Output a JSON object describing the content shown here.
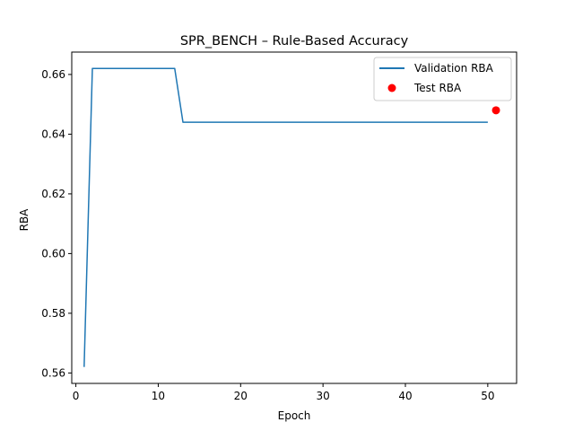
{
  "chart_data": {
    "type": "line",
    "title": "SPR_BENCH – Rule-Based Accuracy",
    "xlabel": "Epoch",
    "ylabel": "RBA",
    "xlim": [
      -0.5,
      53.5
    ],
    "ylim": [
      0.5565,
      0.6675
    ],
    "xticks": [
      0,
      10,
      20,
      30,
      40,
      50
    ],
    "yticks": [
      0.56,
      0.58,
      0.6,
      0.62,
      0.64,
      0.66
    ],
    "ytick_labels": [
      "0.56",
      "0.58",
      "0.60",
      "0.62",
      "0.64",
      "0.66"
    ],
    "grid": false,
    "legend_position": "top-right",
    "series": [
      {
        "name": "Validation RBA",
        "type": "line",
        "color": "#1f77b4",
        "x": [
          1,
          2,
          3,
          4,
          5,
          6,
          7,
          8,
          9,
          10,
          11,
          12,
          13,
          14,
          15,
          16,
          17,
          18,
          19,
          20,
          21,
          22,
          23,
          24,
          25,
          26,
          27,
          28,
          29,
          30,
          31,
          32,
          33,
          34,
          35,
          36,
          37,
          38,
          39,
          40,
          41,
          42,
          43,
          44,
          45,
          46,
          47,
          48,
          49,
          50
        ],
        "y": [
          0.562,
          0.662,
          0.662,
          0.662,
          0.662,
          0.662,
          0.662,
          0.662,
          0.662,
          0.662,
          0.662,
          0.662,
          0.644,
          0.644,
          0.644,
          0.644,
          0.644,
          0.644,
          0.644,
          0.644,
          0.644,
          0.644,
          0.644,
          0.644,
          0.644,
          0.644,
          0.644,
          0.644,
          0.644,
          0.644,
          0.644,
          0.644,
          0.644,
          0.644,
          0.644,
          0.644,
          0.644,
          0.644,
          0.644,
          0.644,
          0.644,
          0.644,
          0.644,
          0.644,
          0.644,
          0.644,
          0.644,
          0.644,
          0.644,
          0.644
        ]
      },
      {
        "name": "Test RBA",
        "type": "scatter",
        "color": "#ff0000",
        "x": [
          51
        ],
        "y": [
          0.648
        ]
      }
    ]
  }
}
